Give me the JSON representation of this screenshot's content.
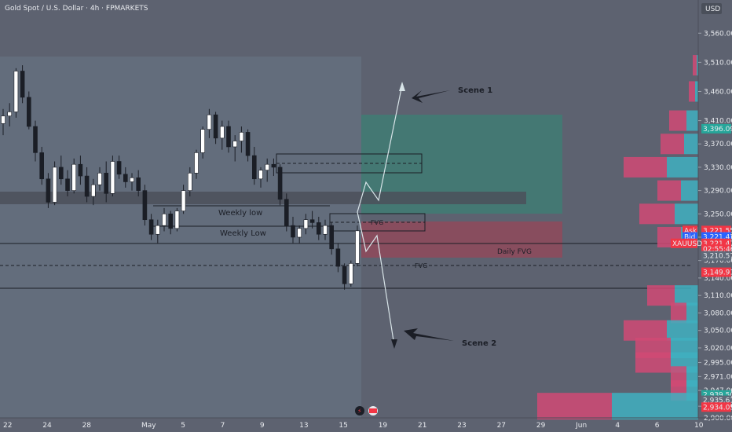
{
  "header": {
    "title": "Gold Spot / U.S. Dollar · 4h · FPMARKETS",
    "currency": "USD",
    "dot_color": "#2ebd85"
  },
  "chart_data": {
    "type": "candlestick",
    "title": "Gold Spot / U.S. Dollar · 4h · FPMARKETS",
    "ylim": [
      2900,
      3590
    ],
    "y_ticks": [
      3560,
      3510,
      3460,
      3410,
      3370,
      3330,
      3290,
      3250,
      3210,
      3170,
      3140,
      3110,
      3080,
      3050,
      3020,
      2995,
      2971,
      2947,
      2920,
      2900
    ],
    "y_tick_labels": [
      "3,560.00",
      "3,510.00",
      "3,460.00",
      "3,410.00",
      "3,370.00",
      "3,330.00",
      "3,290.00",
      "3,250.00",
      "3,210.00",
      "3,170.00",
      "3,140.00",
      "3,110.00",
      "3,080.00",
      "3,050.00",
      "3,020.00",
      "2,995.00",
      "2,971.00",
      "2,947.00",
      "2,920.00",
      "2,900.00"
    ],
    "x_labels": [
      {
        "text": "22",
        "pos": 0
      },
      {
        "text": "24",
        "pos": 2
      },
      {
        "text": "28",
        "pos": 4
      },
      {
        "text": "May",
        "pos": 7
      },
      {
        "text": "5",
        "pos": 9
      },
      {
        "text": "7",
        "pos": 11
      },
      {
        "text": "9",
        "pos": 13
      },
      {
        "text": "13",
        "pos": 15
      },
      {
        "text": "15",
        "pos": 17
      },
      {
        "text": "19",
        "pos": 19
      },
      {
        "text": "21",
        "pos": 21
      },
      {
        "text": "23",
        "pos": 23
      },
      {
        "text": "27",
        "pos": 25
      },
      {
        "text": "29",
        "pos": 27
      },
      {
        "text": "Jun",
        "pos": 29
      },
      {
        "text": "4",
        "pos": 31
      },
      {
        "text": "6",
        "pos": 33
      },
      {
        "text": "10",
        "pos": 35
      }
    ],
    "x_count": 36,
    "candle_colors": {
      "up": "#ffffff",
      "down": "#1b1e26",
      "wick": "#1b1e26"
    },
    "candles": [
      [
        3405,
        3430,
        3385,
        3418
      ],
      [
        3418,
        3440,
        3400,
        3425
      ],
      [
        3425,
        3500,
        3415,
        3495
      ],
      [
        3495,
        3505,
        3440,
        3450
      ],
      [
        3450,
        3460,
        3395,
        3400
      ],
      [
        3400,
        3410,
        3340,
        3355
      ],
      [
        3355,
        3365,
        3300,
        3310
      ],
      [
        3310,
        3320,
        3260,
        3270
      ],
      [
        3270,
        3340,
        3265,
        3330
      ],
      [
        3330,
        3350,
        3300,
        3310
      ],
      [
        3310,
        3325,
        3280,
        3290
      ],
      [
        3290,
        3345,
        3285,
        3335
      ],
      [
        3335,
        3350,
        3300,
        3315
      ],
      [
        3315,
        3330,
        3270,
        3280
      ],
      [
        3280,
        3310,
        3265,
        3300
      ],
      [
        3300,
        3330,
        3290,
        3320
      ],
      [
        3320,
        3340,
        3270,
        3285
      ],
      [
        3285,
        3350,
        3280,
        3340
      ],
      [
        3340,
        3350,
        3310,
        3318
      ],
      [
        3318,
        3330,
        3295,
        3305
      ],
      [
        3305,
        3320,
        3290,
        3312
      ],
      [
        3312,
        3325,
        3280,
        3290
      ],
      [
        3290,
        3300,
        3230,
        3240
      ],
      [
        3240,
        3250,
        3205,
        3215
      ],
      [
        3215,
        3240,
        3200,
        3230
      ],
      [
        3230,
        3260,
        3220,
        3250
      ],
      [
        3250,
        3255,
        3215,
        3225
      ],
      [
        3225,
        3260,
        3220,
        3255
      ],
      [
        3255,
        3300,
        3250,
        3290
      ],
      [
        3290,
        3330,
        3280,
        3320
      ],
      [
        3320,
        3360,
        3310,
        3355
      ],
      [
        3355,
        3400,
        3345,
        3395
      ],
      [
        3395,
        3430,
        3380,
        3420
      ],
      [
        3420,
        3425,
        3370,
        3380
      ],
      [
        3380,
        3410,
        3360,
        3400
      ],
      [
        3400,
        3410,
        3355,
        3365
      ],
      [
        3365,
        3385,
        3340,
        3375
      ],
      [
        3375,
        3400,
        3355,
        3390
      ],
      [
        3390,
        3395,
        3340,
        3350
      ],
      [
        3350,
        3365,
        3300,
        3310
      ],
      [
        3310,
        3330,
        3295,
        3325
      ],
      [
        3325,
        3345,
        3305,
        3335
      ],
      [
        3335,
        3345,
        3315,
        3330
      ],
      [
        3330,
        3335,
        3265,
        3275
      ],
      [
        3275,
        3285,
        3220,
        3230
      ],
      [
        3230,
        3245,
        3200,
        3210
      ],
      [
        3210,
        3230,
        3200,
        3225
      ],
      [
        3225,
        3250,
        3215,
        3240
      ],
      [
        3240,
        3255,
        3225,
        3235
      ],
      [
        3235,
        3245,
        3205,
        3215
      ],
      [
        3215,
        3240,
        3205,
        3230
      ],
      [
        3230,
        3235,
        3180,
        3190
      ],
      [
        3190,
        3200,
        3150,
        3160
      ],
      [
        3160,
        3165,
        3120,
        3130
      ],
      [
        3130,
        3170,
        3125,
        3165
      ],
      [
        3165,
        3230,
        3160,
        3221
      ]
    ],
    "price_labels": [
      {
        "text": "3,396.09",
        "price": 3396.09,
        "color": "#26a69a"
      },
      {
        "text": "3,221.55",
        "price": 3221.55,
        "color": "#f23645",
        "tag": "Ask"
      },
      {
        "text": "3,221.47",
        "price": 3210.5,
        "color": "#2962ff",
        "tag": "Bid"
      },
      {
        "text": "3,221.47",
        "price": 3199.5,
        "color": "#f23645",
        "tag": "XAUUSD"
      },
      {
        "text": "02:55:46",
        "price": 3189.5,
        "color": "#f23645"
      },
      {
        "text": "3,210.57",
        "price": 3178,
        "color": "#606a79"
      },
      {
        "text": "3,149.91",
        "price": 3149.91,
        "color": "#f23645"
      },
      {
        "text": "2,939.50",
        "price": 2939.5,
        "color": "#26a69a"
      },
      {
        "text": "2,935.61",
        "price": 2930.2,
        "color": "#606a79"
      },
      {
        "text": "2,934.05",
        "price": 2918.5,
        "color": "#f23645"
      }
    ],
    "volume_profile": [
      {
        "price": 3505,
        "pos": 2,
        "neg": 5
      },
      {
        "price": 3460,
        "pos": 4,
        "neg": 8
      },
      {
        "price": 3410,
        "pos": 15,
        "neg": 22
      },
      {
        "price": 3370,
        "pos": 18,
        "neg": 30
      },
      {
        "price": 3330,
        "pos": 40,
        "neg": 55
      },
      {
        "price": 3290,
        "pos": 22,
        "neg": 30
      },
      {
        "price": 3250,
        "pos": 30,
        "neg": 45
      },
      {
        "price": 3210,
        "pos": 22,
        "neg": 30
      },
      {
        "price": 3110,
        "pos": 30,
        "neg": 35
      },
      {
        "price": 3080,
        "pos": 15,
        "neg": 20
      },
      {
        "price": 3050,
        "pos": 40,
        "neg": 55
      },
      {
        "price": 3020,
        "pos": 35,
        "neg": 45
      },
      {
        "price": 2995,
        "pos": 35,
        "neg": 45
      },
      {
        "price": 2971,
        "pos": 15,
        "neg": 20
      },
      {
        "price": 2947,
        "pos": 15,
        "neg": 20
      },
      {
        "price": 2920,
        "pos": 110,
        "neg": 95
      }
    ],
    "annotations": {
      "weekly_low_1": "Weekly low",
      "weekly_low_2": "Weekly Low",
      "fvg_1": "FVG",
      "fvg_2": "FVG",
      "daily_fvg": "Daily FVG",
      "scene_1": "Scene 1",
      "scene_2": "Scene 2"
    },
    "colors": {
      "background": "#5d6270",
      "overlay": "#6a7680",
      "long_zone": "#3f7c73",
      "short_zone": "#8f4a5a",
      "volume_pos": "#3fb0c0",
      "volume_neg": "#d04a74"
    }
  }
}
